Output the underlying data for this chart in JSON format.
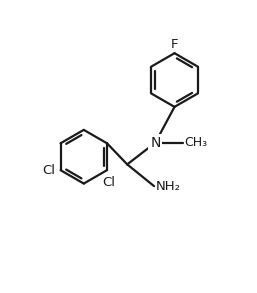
{
  "background_color": "#ffffff",
  "line_color": "#1a1a1a",
  "line_width": 1.6,
  "font_size": 9.5,
  "figsize": [
    2.57,
    2.93
  ],
  "dpi": 100,
  "xlim": [
    0,
    10
  ],
  "ylim": [
    0,
    11.4
  ]
}
